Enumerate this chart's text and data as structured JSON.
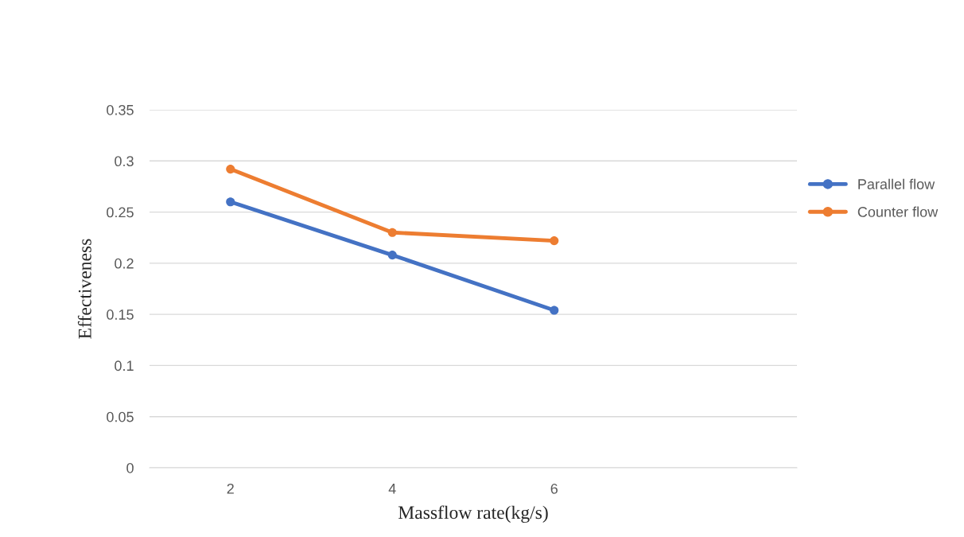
{
  "chart_data": {
    "type": "line",
    "xlabel": "Massflow rate(kg/s)",
    "ylabel": "Effectiveness",
    "categories": [
      "2",
      "4",
      "6",
      null
    ],
    "series": [
      {
        "name": "Parallel flow",
        "color": "#4472c4",
        "values": [
          0.26,
          0.208,
          0.154,
          null
        ]
      },
      {
        "name": "Counter flow",
        "color": "#ed7d31",
        "values": [
          0.292,
          0.23,
          0.222,
          null
        ]
      }
    ],
    "ylim": [
      0,
      0.35
    ],
    "yticks": [
      0,
      0.05,
      0.1,
      0.15,
      0.2,
      0.25,
      0.3,
      0.35
    ],
    "grid": "y",
    "legend": "right",
    "marker": "circle",
    "line_style": "solid"
  }
}
